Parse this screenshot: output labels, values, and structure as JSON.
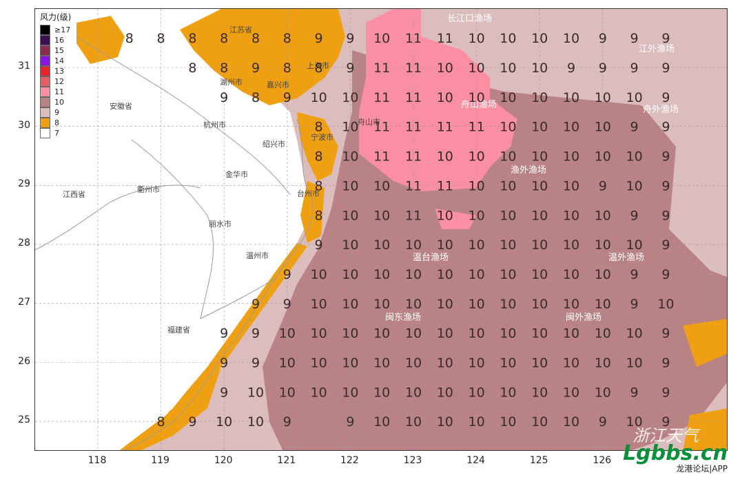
{
  "legend": {
    "title": "风力(级)",
    "items": [
      {
        "label": "≥17",
        "color": "#000000"
      },
      {
        "label": "16",
        "color": "#3b0d52"
      },
      {
        "label": "15",
        "color": "#8b2b52"
      },
      {
        "label": "14",
        "color": "#8a14e6"
      },
      {
        "label": "13",
        "color": "#e8252a"
      },
      {
        "label": "12",
        "color": "#e45f63"
      },
      {
        "label": "11",
        "color": "#f98fa0"
      },
      {
        "label": "10",
        "color": "#b98386"
      },
      {
        "label": "9",
        "color": "#dcbdbe"
      },
      {
        "label": "8",
        "color": "#efa012"
      },
      {
        "label": "7",
        "color": "#ffffff"
      }
    ]
  },
  "axes": {
    "x_ticks": [
      "118",
      "119",
      "120",
      "121",
      "122",
      "123",
      "124",
      "125",
      "126"
    ],
    "y_ticks": [
      "31",
      "30",
      "29",
      "28",
      "27",
      "26",
      "25"
    ]
  },
  "place_labels": [
    "江苏省",
    "上海市",
    "湖州市",
    "嘉兴市",
    "安徽省",
    "杭州市",
    "舟山市",
    "绍兴市",
    "宁波市",
    "金华市",
    "衢州市",
    "台州市",
    "江西省",
    "丽水市",
    "温州市",
    "福建省",
    "长江口渔场",
    "江外渔场",
    "舟山渔场",
    "舟外渔场",
    "渔外渔场",
    "温台渔场",
    "温外渔场",
    "闽东渔场",
    "闽外渔场"
  ],
  "grid_values": {
    "columns_lon": [
      118,
      118.5,
      119,
      119.5,
      120,
      120.5,
      121,
      121.5,
      122,
      122.5,
      123,
      123.5,
      124,
      124.5,
      125,
      125.5,
      126,
      126.5,
      127
    ],
    "rows": [
      {
        "lat": 31.5,
        "values": [
          "",
          "8",
          "8",
          "8",
          "8",
          "8",
          "8",
          "9",
          "9",
          "10",
          "11",
          "11",
          "10",
          "10",
          "10",
          "10",
          "9",
          "9",
          "9"
        ]
      },
      {
        "lat": 31.0,
        "values": [
          "",
          "",
          "",
          "8",
          "8",
          "9",
          "8",
          "8",
          "9",
          "11",
          "11",
          "10",
          "10",
          "10",
          "10",
          "9",
          "9",
          "9",
          "9"
        ]
      },
      {
        "lat": 30.5,
        "values": [
          "",
          "",
          "",
          "",
          "9",
          "8",
          "9",
          "10",
          "10",
          "11",
          "11",
          "10",
          "10",
          "10",
          "10",
          "10",
          "10",
          "10",
          "9"
        ]
      },
      {
        "lat": 30.0,
        "values": [
          "",
          "",
          "",
          "",
          "",
          "",
          "",
          "8",
          "10",
          "11",
          "11",
          "11",
          "11",
          "10",
          "10",
          "10",
          "10",
          "9",
          "9"
        ]
      },
      {
        "lat": 29.5,
        "values": [
          "",
          "",
          "",
          "",
          "",
          "",
          "",
          "8",
          "10",
          "11",
          "11",
          "10",
          "10",
          "10",
          "10",
          "10",
          "10",
          "10",
          "9"
        ]
      },
      {
        "lat": 29.0,
        "values": [
          "",
          "",
          "",
          "",
          "",
          "",
          "",
          "8",
          "10",
          "10",
          "11",
          "11",
          "10",
          "10",
          "10",
          "10",
          "9",
          "10",
          "9"
        ]
      },
      {
        "lat": 28.5,
        "values": [
          "",
          "",
          "",
          "",
          "",
          "",
          "",
          "8",
          "10",
          "10",
          "11",
          "10",
          "10",
          "10",
          "10",
          "10",
          "10",
          "9",
          "9"
        ]
      },
      {
        "lat": 28.0,
        "values": [
          "",
          "",
          "",
          "",
          "",
          "",
          "",
          "9",
          "10",
          "10",
          "10",
          "10",
          "10",
          "10",
          "10",
          "10",
          "10",
          "10",
          "9"
        ]
      },
      {
        "lat": 27.5,
        "values": [
          "",
          "",
          "",
          "",
          "",
          "",
          "9",
          "10",
          "10",
          "10",
          "10",
          "10",
          "10",
          "10",
          "10",
          "10",
          "10",
          "9",
          "9"
        ]
      },
      {
        "lat": 27.0,
        "values": [
          "",
          "",
          "",
          "",
          "",
          "9",
          "9",
          "10",
          "10",
          "10",
          "10",
          "10",
          "10",
          "10",
          "10",
          "10",
          "10",
          "9",
          "10"
        ]
      },
      {
        "lat": 26.5,
        "values": [
          "",
          "",
          "",
          "",
          "9",
          "9",
          "10",
          "10",
          "10",
          "10",
          "10",
          "10",
          "10",
          "10",
          "10",
          "10",
          "10",
          "10",
          "9"
        ]
      },
      {
        "lat": 26.0,
        "values": [
          "",
          "",
          "",
          "",
          "9",
          "9",
          "10",
          "10",
          "10",
          "10",
          "10",
          "10",
          "10",
          "10",
          "10",
          "10",
          "10",
          "10",
          "9"
        ]
      },
      {
        "lat": 25.5,
        "values": [
          "",
          "",
          "",
          "",
          "9",
          "10",
          "10",
          "10",
          "10",
          "10",
          "10",
          "10",
          "10",
          "10",
          "10",
          "10",
          "10",
          "9",
          "9"
        ]
      },
      {
        "lat": 25.0,
        "values": [
          "",
          "",
          "8",
          "9",
          "10",
          "10",
          "9",
          "",
          "9",
          "10",
          "10",
          "10",
          "10",
          "10",
          "10",
          "10",
          "9",
          "10",
          "9"
        ]
      }
    ]
  },
  "watermark": {
    "logo_text": "Lgbbs.cn",
    "sub_text": "龙港论坛|APP",
    "ghost_text": "浙江天气"
  }
}
